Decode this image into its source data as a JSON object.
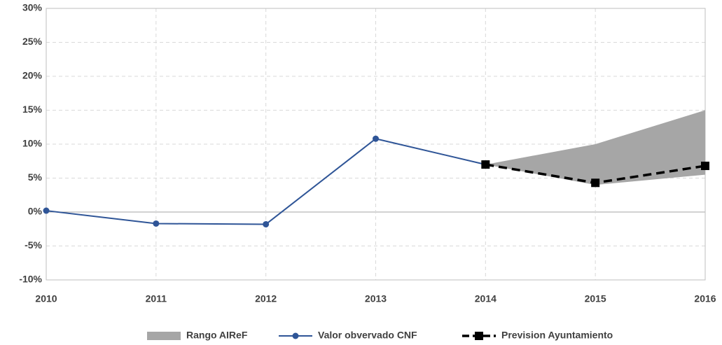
{
  "chart_data": {
    "type": "line",
    "categories": [
      "2010",
      "2011",
      "2012",
      "2013",
      "2014",
      "2015",
      "2016"
    ],
    "series": [
      {
        "name": "Rango AIReF",
        "type": "area",
        "color": "#a6a6a6",
        "lower": [
          null,
          null,
          null,
          null,
          7.0,
          4.0,
          5.5
        ],
        "upper": [
          null,
          null,
          null,
          null,
          7.0,
          10.0,
          15.0
        ]
      },
      {
        "name": "Valor obvervado CNF",
        "type": "line",
        "color": "#2f5597",
        "marker": "circle",
        "values": [
          0.2,
          -1.7,
          -1.8,
          10.8,
          7.0,
          null,
          null
        ]
      },
      {
        "name": "Prevision Ayuntamiento",
        "type": "line",
        "color": "#000000",
        "marker": "square",
        "dashed": true,
        "values": [
          null,
          null,
          null,
          null,
          7.0,
          4.3,
          6.8
        ]
      }
    ],
    "ylim": [
      -10,
      30
    ],
    "yticks": [
      {
        "value": -10,
        "label": "-10%"
      },
      {
        "value": -5,
        "label": "-5%"
      },
      {
        "value": 0,
        "label": "0%"
      },
      {
        "value": 5,
        "label": "5%"
      },
      {
        "value": 10,
        "label": "10%"
      },
      {
        "value": 15,
        "label": "15%"
      },
      {
        "value": 20,
        "label": "20%"
      },
      {
        "value": 25,
        "label": "25%"
      },
      {
        "value": 30,
        "label": "30%"
      }
    ],
    "grid": true,
    "legend": "bottom"
  }
}
